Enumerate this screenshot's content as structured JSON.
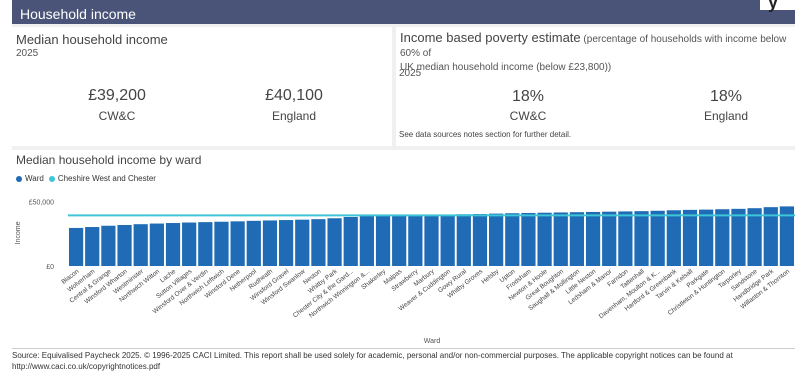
{
  "header": {
    "title": "Household income",
    "corner_glyph": "y"
  },
  "median_card": {
    "title": "Median household income",
    "year": "2025",
    "items": [
      {
        "value": "£39,200",
        "label": "CW&C"
      },
      {
        "value": "£40,100",
        "label": "England"
      }
    ]
  },
  "poverty_card": {
    "title": "Income based poverty estimate",
    "title_detail_line1": " (percentage of households with income below 60% of",
    "title_detail_line2": "UK median household income (below £23,800))",
    "year": "2025",
    "items": [
      {
        "value": "18%",
        "label": "CW&C"
      },
      {
        "value": "18%",
        "label": "England"
      }
    ],
    "note": "See data sources notes section for further detail."
  },
  "chart_title": "Median household income by ward",
  "legend": [
    {
      "label": "Ward",
      "color": "#1f6bb5"
    },
    {
      "label": "Cheshire West and Chester",
      "color": "#3ec6d8"
    }
  ],
  "chart_data": {
    "type": "bar",
    "xlabel": "Ward",
    "ylabel": "Income",
    "ylim": [
      0,
      62000
    ],
    "yticks": [
      0,
      50000
    ],
    "ytick_labels": [
      "£0",
      "£50,000"
    ],
    "reference_line": {
      "name": "Cheshire West and Chester",
      "value": 39200,
      "color": "#3ec6d8"
    },
    "bar_color": "#1f6bb5",
    "categories": [
      "Blacon",
      "Wolverham",
      "Central & Grange",
      "Winsford Wharton",
      "Westminster",
      "Northwich Witton",
      "Lache",
      "Sutton Villages",
      "Winsford Over & Verdin",
      "Northwich Leftwich",
      "Winsford Dene",
      "Netherpool",
      "Rudheath",
      "Winsford Gravel",
      "Winsford Swanlow",
      "Neston",
      "Whitby Park",
      "Chester City & the Gard...",
      "Northwich Winnington &...",
      "Shakerley",
      "Malpas",
      "Strawberry",
      "Marbury",
      "Weaver & Cuddington",
      "Gowy Rural",
      "Whitby Groves",
      "Helsby",
      "Upton",
      "Frodsham",
      "Newton & Hoole",
      "Great Boughton",
      "Saughall & Mollington",
      "Little Neston",
      "Ledsham & Manor",
      "Farndon",
      "Tattenhall",
      "Davenham, Moulton & K...",
      "Hartford & Greenbank",
      "Tarvin & Kelsall",
      "Parkgate",
      "Christleton & Huntington",
      "Tarporley",
      "Sandstone",
      "Handbridge Park",
      "Willaston & Thornton"
    ],
    "values": [
      29500,
      30200,
      31200,
      31800,
      32400,
      32900,
      33300,
      33700,
      34000,
      34300,
      34600,
      35000,
      35300,
      35600,
      35900,
      36300,
      37000,
      38000,
      38700,
      39100,
      39300,
      39500,
      39700,
      39900,
      40100,
      40300,
      40600,
      40900,
      41100,
      41300,
      41500,
      41700,
      41900,
      42100,
      42300,
      42500,
      42800,
      43200,
      43500,
      43700,
      44000,
      44300,
      44800,
      45600,
      46200
    ]
  },
  "footer": {
    "line1": "Source: Equivalised Paycheck 2025. © 1996-2025 CACI Limited. This report shall be used solely for academic, personal and/or non-commercial purposes. The applicable copyright  notices can be found at",
    "line2": "http://www.caci.co.uk/copyrightnotices.pdf"
  }
}
